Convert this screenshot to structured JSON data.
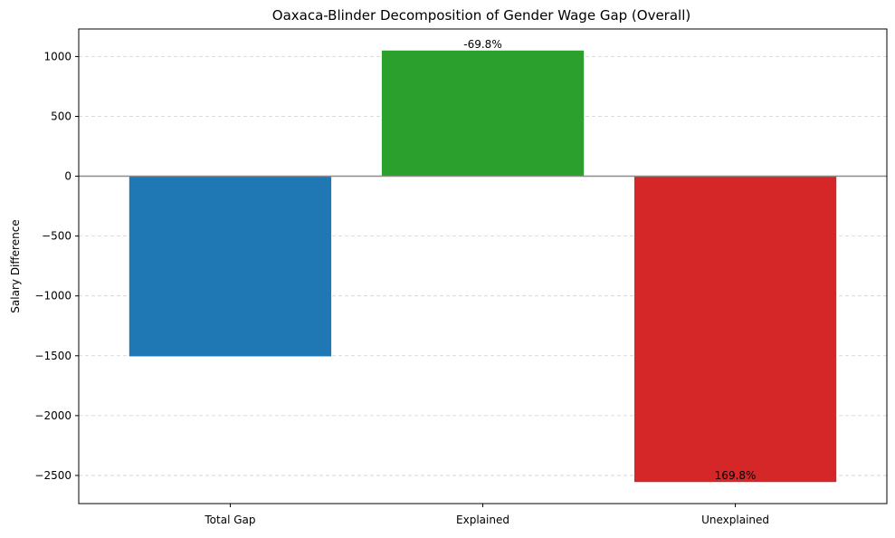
{
  "chart_data": {
    "type": "bar",
    "title": "Oaxaca-Blinder Decomposition of Gender Wage Gap (Overall)",
    "xlabel": "",
    "ylabel": "Salary Difference",
    "categories": [
      "Total Gap",
      "Explained",
      "Unexplained"
    ],
    "values": [
      -1505,
      1050,
      -2555
    ],
    "bar_labels": [
      "",
      "-69.8%",
      "169.8%"
    ],
    "colors": [
      "#1f77b4",
      "#2ca02c",
      "#d62728"
    ],
    "ylim": [
      -2735,
      1230
    ],
    "yticks": [
      1000,
      500,
      0,
      -500,
      -1000,
      -1500,
      -2000,
      -2500
    ],
    "ytick_labels": [
      "1000",
      "500",
      "0",
      "−500",
      "−1000",
      "−1500",
      "−2000",
      "−2500"
    ],
    "grid": true,
    "grid_axis": "y",
    "zero_line": true,
    "legend": "none"
  }
}
